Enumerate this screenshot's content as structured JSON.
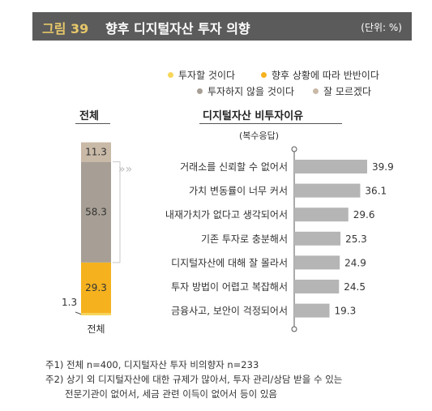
{
  "header": {
    "figure_no": "그림 39",
    "title": "향후 디지털자산 투자 의향",
    "unit": "(단위: %)"
  },
  "legend": [
    {
      "label": "투자할 것이다",
      "color": "#f7d65a"
    },
    {
      "label": "향후 상황에 따라 반반이다",
      "color": "#f5b21e"
    },
    {
      "label": "투자하지 않을 것이다",
      "color": "#a79f95"
    },
    {
      "label": "잘 모르겠다",
      "color": "#c9b9a7"
    }
  ],
  "chart_data": [
    {
      "type": "bar",
      "title": "전체",
      "categories": [
        "전체"
      ],
      "series": [
        {
          "name": "투자할 것이다",
          "values": [
            1.3
          ]
        },
        {
          "name": "향후 상황에 따라 반반이다",
          "values": [
            29.3
          ]
        },
        {
          "name": "투자하지 않을 것이다",
          "values": [
            58.3
          ]
        },
        {
          "name": "잘 모르겠다",
          "values": [
            11.3
          ]
        }
      ],
      "xlabel": "전체",
      "stacked": true,
      "ylim": [
        0,
        100
      ]
    },
    {
      "type": "bar",
      "orientation": "horizontal",
      "title": "디지털자산 비투자이유",
      "subtitle": "(복수응답)",
      "categories": [
        "거래소를 신뢰할 수 없어서",
        "가치 변동률이 너무 커서",
        "내재가치가 없다고 생각되어서",
        "기존 투자로 충분해서",
        "디지털자산에 대해 잘 몰라서",
        "투자 방법이 어렵고 복잡해서",
        "금융사고, 보안이 걱정되어서"
      ],
      "values": [
        39.9,
        36.1,
        29.6,
        25.3,
        24.9,
        24.5,
        19.3
      ],
      "xlim": [
        0,
        45
      ]
    }
  ],
  "notes": [
    "주1) 전체 n=400, 디지털자산 투자 비의향자 n=233",
    "주2) 상기 외 디지털자산에 대한 규제가 많아서, 투자 관리/상담 받을 수 있는",
    "전문기관이 없어서, 세금 관련 이득이 없어서 등이 있음"
  ],
  "colors": {
    "header_bg": "#5b5b5b",
    "accent_gold": "#e6c76a",
    "bar_gray": "#b5b5b5",
    "connector": "#c8c8c8"
  }
}
